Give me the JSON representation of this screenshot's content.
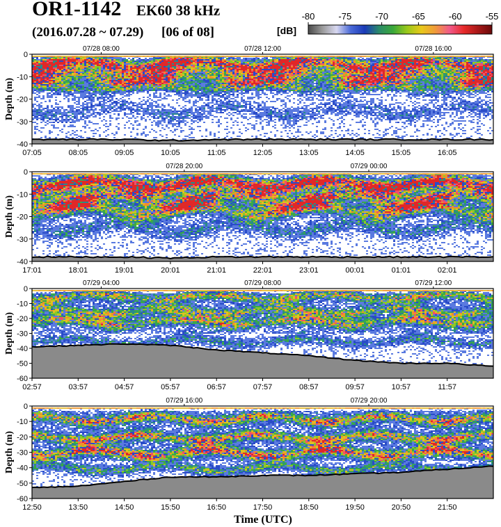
{
  "header": {
    "cruise": "OR1-1142",
    "instrument": "EK60 38 kHz",
    "dates": "(2016.07.28 ~ 07.29)",
    "page": "[06 of 08]"
  },
  "colorbar": {
    "unit": "[dB]",
    "ticks": [
      "-80",
      "-75",
      "-70",
      "-65",
      "-60",
      "-55"
    ],
    "stops": [
      "#4a4a4a",
      "#9a9a9a",
      "#d8d8f0",
      "#4a6ad8",
      "#1a3ab8",
      "#2a8a6a",
      "#3aa83a",
      "#9ac81a",
      "#e8c81a",
      "#f09a3a",
      "#f05a8a",
      "#e82a2a",
      "#a81818",
      "#6a0a0a"
    ]
  },
  "colors": {
    "seafloor": "#8a8a8a",
    "bottom_line": "#000000"
  },
  "chart_data": [
    {
      "type": "heatmap",
      "title": "",
      "xlabel": "",
      "ylabel": "Depth (m)",
      "ylim": [
        0,
        -40
      ],
      "yticks": [
        "0",
        "-10",
        "-20",
        "-30",
        "-40"
      ],
      "xticks": [
        "07:05",
        "08:05",
        "09:05",
        "10:05",
        "11:05",
        "12:05",
        "13:05",
        "14:05",
        "15:05",
        "16:05"
      ],
      "datetime_labels": [
        "07/28 08:00",
        "07/28 12:00",
        "07/28 16:00"
      ],
      "bottom_depth_profile": [
        -38,
        -38,
        -38,
        -38.5,
        -38,
        -38,
        -38,
        -38,
        -38,
        -38,
        -38
      ],
      "upper_layer": [
        -2,
        -16
      ],
      "scattering_layers": [
        {
          "depth": -4,
          "level": 0.9
        },
        {
          "depth": -10,
          "level": 0.55
        },
        {
          "depth": -14,
          "level": 0.4
        },
        {
          "depth": -25,
          "level": 0.3
        }
      ]
    },
    {
      "type": "heatmap",
      "title": "",
      "xlabel": "",
      "ylabel": "Depth (m)",
      "ylim": [
        0,
        -40
      ],
      "yticks": [
        "0",
        "-10",
        "-20",
        "-30",
        "-40"
      ],
      "xticks": [
        "17:01",
        "18:01",
        "19:01",
        "20:01",
        "21:01",
        "22:01",
        "23:01",
        "00:01",
        "01:01",
        "02:01"
      ],
      "datetime_labels": [
        "07/28 20:00",
        "07/29 00:00"
      ],
      "bottom_depth_profile": [
        -38,
        -38,
        -38,
        -38.5,
        -38,
        -38,
        -38,
        -38,
        -38,
        -38,
        -38
      ],
      "upper_layer": [
        -3,
        -12
      ],
      "scattering_layers": [
        {
          "depth": -5,
          "level": 1.0
        },
        {
          "depth": -12,
          "level": 0.7
        },
        {
          "depth": -17,
          "level": 0.75
        },
        {
          "depth": -25,
          "level": 0.4
        }
      ]
    },
    {
      "type": "heatmap",
      "title": "",
      "xlabel": "",
      "ylabel": "Depth (m)",
      "ylim": [
        0,
        -60
      ],
      "yticks": [
        "0",
        "-10",
        "-20",
        "-30",
        "-40",
        "-50",
        "-60"
      ],
      "xticks": [
        "02:57",
        "03:57",
        "04:57",
        "05:57",
        "06:57",
        "07:57",
        "08:57",
        "09:57",
        "10:57",
        "11:57"
      ],
      "datetime_labels": [
        "07/29 04:00",
        "07/29 08:00",
        "07/29 12:00"
      ],
      "bottom_depth_profile": [
        -39,
        -38,
        -37,
        -38,
        -41,
        -43,
        -45,
        -48,
        -50,
        -50,
        -52
      ],
      "upper_layer": [
        -3,
        -30
      ],
      "scattering_layers": [
        {
          "depth": -5,
          "level": 0.6
        },
        {
          "depth": -15,
          "level": 0.55
        },
        {
          "depth": -22,
          "level": 0.6
        },
        {
          "depth": -35,
          "level": 0.45
        }
      ]
    },
    {
      "type": "heatmap",
      "title": "",
      "xlabel": "Time (UTC)",
      "ylabel": "Depth (m)",
      "ylim": [
        0,
        -60
      ],
      "yticks": [
        "0",
        "-10",
        "-20",
        "-30",
        "-40",
        "-50",
        "-60"
      ],
      "xticks": [
        "12:50",
        "13:50",
        "14:50",
        "15:50",
        "16:50",
        "17:50",
        "18:50",
        "19:50",
        "20:50",
        "21:50"
      ],
      "datetime_labels": [
        "07/29 16:00",
        "07/29 20:00"
      ],
      "bottom_depth_profile": [
        -53,
        -52,
        -49,
        -46,
        -46,
        -45,
        -45,
        -44,
        -43,
        -41,
        -39
      ],
      "upper_layer": [
        -3,
        -35
      ],
      "scattering_layers": [
        {
          "depth": -8,
          "level": 0.7
        },
        {
          "depth": -20,
          "level": 0.7
        },
        {
          "depth": -30,
          "level": 0.8
        },
        {
          "depth": -40,
          "level": 0.6
        }
      ]
    }
  ]
}
